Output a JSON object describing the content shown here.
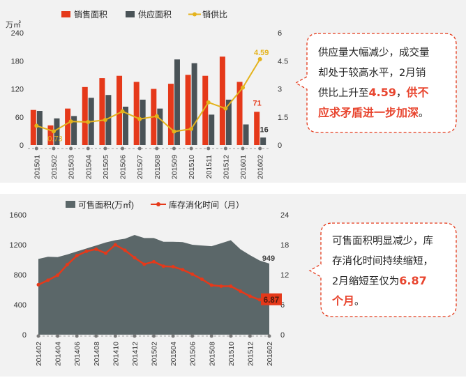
{
  "colors": {
    "sales_bar": "#e5391a",
    "supply_bar": "#4a5357",
    "ratio_line": "#e4b31d",
    "stock_area": "#5b6769",
    "digest_line": "#e5391a",
    "callout_border": "#e5391a",
    "highlight_text": "#e8452f"
  },
  "chart_data": [
    {
      "type": "bar",
      "y_unit": "万㎡",
      "legend": [
        "销售面积",
        "供应面积",
        "销供比"
      ],
      "legend_placement": "top",
      "categories": [
        "201501",
        "201502",
        "201503",
        "201504",
        "201505",
        "201506",
        "201507",
        "201508",
        "201509",
        "201510",
        "201511",
        "201512",
        "201601",
        "201602"
      ],
      "series": [
        {
          "name": "销售面积",
          "type": "bar",
          "axis": "left",
          "values": [
            75,
            42,
            78,
            124,
            143,
            148,
            135,
            120,
            131,
            150,
            148,
            189,
            135,
            71
          ]
        },
        {
          "name": "供应面积",
          "type": "bar",
          "axis": "left",
          "values": [
            73,
            57,
            62,
            101,
            107,
            82,
            97,
            78,
            183,
            175,
            65,
            97,
            44,
            16
          ]
        },
        {
          "name": "销供比",
          "type": "line",
          "axis": "right",
          "values": [
            1.03,
            0.73,
            1.26,
            1.23,
            1.34,
            1.8,
            1.39,
            1.54,
            0.72,
            0.86,
            2.28,
            1.95,
            3.07,
            4.59
          ]
        }
      ],
      "data_labels": {
        "201502_ratio": "0.73",
        "201602_ratio": "4.59",
        "201602_sales": "71",
        "201602_supply": "16"
      },
      "y_left": {
        "ticks": [
          "0",
          "60",
          "120",
          "180",
          "240"
        ],
        "range": [
          0,
          240
        ]
      },
      "y_right": {
        "ticks": [
          "0",
          "1.5",
          "3",
          "4.5",
          "6"
        ],
        "range": [
          0,
          6
        ]
      },
      "grid": false
    },
    {
      "type": "area",
      "legend": [
        "可售面积(万㎡)",
        "库存消化时间（月）"
      ],
      "legend_placement": "top",
      "x_tick_labels": [
        "201402",
        "201404",
        "201406",
        "201408",
        "201410",
        "201412",
        "201502",
        "201504",
        "201506",
        "201508",
        "201510",
        "201512",
        "201602"
      ],
      "months": [
        "201402",
        "201403",
        "201404",
        "201405",
        "201406",
        "201407",
        "201408",
        "201409",
        "201410",
        "201411",
        "201412",
        "201501",
        "201502",
        "201503",
        "201504",
        "201505",
        "201506",
        "201507",
        "201508",
        "201509",
        "201510",
        "201511",
        "201512",
        "201601",
        "201602"
      ],
      "series": [
        {
          "name": "可售面积(万㎡)",
          "type": "area",
          "axis": "left",
          "values": [
            1010,
            1040,
            1035,
            1070,
            1110,
            1150,
            1190,
            1230,
            1260,
            1280,
            1330,
            1290,
            1290,
            1240,
            1240,
            1235,
            1200,
            1190,
            1180,
            1220,
            1260,
            1140,
            1060,
            990,
            949
          ]
        },
        {
          "name": "库存消化时间（月）",
          "type": "line",
          "axis": "right",
          "values": [
            10.0,
            10.9,
            11.9,
            14.0,
            15.8,
            16.7,
            17.1,
            16.3,
            18.0,
            16.9,
            15.4,
            14.1,
            14.6,
            13.7,
            13.6,
            13.0,
            12.1,
            11.1,
            9.9,
            9.7,
            9.7,
            8.7,
            7.7,
            7.0,
            6.87
          ]
        }
      ],
      "data_labels": {
        "201602_stock": "949",
        "201602_digest": "6.87"
      },
      "y_left": {
        "ticks": [
          "0",
          "400",
          "800",
          "1200",
          "1600"
        ],
        "range": [
          0,
          1600
        ]
      },
      "y_right": {
        "ticks": [
          "0",
          "6",
          "12",
          "18",
          "24"
        ],
        "range": [
          0,
          24
        ]
      },
      "grid": false
    }
  ],
  "callouts": [
    {
      "lines": [
        [
          {
            "t": "供应量大幅减少，成交量"
          }
        ],
        [
          {
            "t": "却处于较高水平，2月销"
          }
        ],
        [
          {
            "t": "供比上升至"
          },
          {
            "t": "4.59",
            "hl": true
          },
          {
            "t": "，"
          },
          {
            "t": "供不",
            "hl": true
          }
        ],
        [
          {
            "t": "应求矛盾进一步加深",
            "hl": true
          },
          {
            "t": "。"
          }
        ]
      ]
    },
    {
      "lines": [
        [
          {
            "t": "可售面积明显减少，库"
          }
        ],
        [
          {
            "t": "存消化时间持续缩短，"
          }
        ],
        [
          {
            "t": "2月缩短至仅为"
          },
          {
            "t": "6.87",
            "hl": true
          }
        ],
        [
          {
            "t": "个月",
            "hl": true
          },
          {
            "t": "。"
          }
        ]
      ]
    }
  ]
}
